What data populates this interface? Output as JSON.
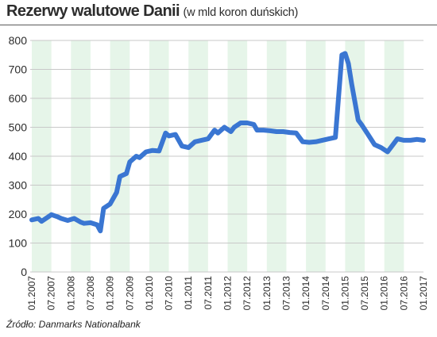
{
  "header": {
    "title": "Rezerwy walutowe Danii",
    "subtitle": "(w mld koron duńskich)"
  },
  "source": "Źródło: Danmarks Nationalbank",
  "colors": {
    "line": "#3a76d2",
    "stripe": "#e6f5e9",
    "grid": "#c8c8c8",
    "text": "#2c2c2c"
  },
  "chart_data": {
    "type": "line",
    "title": "Rezerwy walutowe Danii (w mld koron duńskich)",
    "xlabel": "",
    "ylabel": "",
    "ylim": [
      0,
      800
    ],
    "y_ticks": [
      0,
      100,
      200,
      300,
      400,
      500,
      600,
      700,
      800
    ],
    "x_tick_labels": [
      "01.2007",
      "07.2007",
      "01.2008",
      "07.2008",
      "01.2009",
      "07.2009",
      "01.2010",
      "07.2010",
      "01.2011",
      "07.2011",
      "01.2012",
      "07.2012",
      "01.2013",
      "07.2013",
      "01.2014",
      "07.2014",
      "01.2015",
      "07.2015",
      "01.2016",
      "07.2016",
      "01.2017"
    ],
    "grid": true,
    "series": [
      {
        "x": [
          "2007-01",
          "2007-03",
          "2007-04",
          "2007-06",
          "2007-07",
          "2007-09",
          "2007-10",
          "2007-12",
          "2008-02",
          "2008-04",
          "2008-05",
          "2008-07",
          "2008-09",
          "2008-10",
          "2008-11",
          "2009-01",
          "2009-03",
          "2009-04",
          "2009-06",
          "2009-07",
          "2009-09",
          "2009-10",
          "2009-12",
          "2010-02",
          "2010-04",
          "2010-06",
          "2010-07",
          "2010-09",
          "2010-11",
          "2011-01",
          "2011-03",
          "2011-05",
          "2011-07",
          "2011-09",
          "2011-10",
          "2011-12",
          "2012-02",
          "2012-03",
          "2012-05",
          "2012-07",
          "2012-09",
          "2012-10",
          "2012-12",
          "2013-02",
          "2013-04",
          "2013-06",
          "2013-08",
          "2013-10",
          "2013-12",
          "2014-02",
          "2014-04",
          "2014-06",
          "2014-08",
          "2014-10",
          "2014-12",
          "2015-01",
          "2015-02",
          "2015-03",
          "2015-05",
          "2015-06",
          "2015-08",
          "2015-10",
          "2015-12",
          "2016-02",
          "2016-04",
          "2016-05",
          "2016-07",
          "2016-09",
          "2016-11",
          "2017-01"
        ],
        "values": [
          180,
          185,
          175,
          190,
          198,
          190,
          185,
          178,
          185,
          172,
          168,
          170,
          163,
          142,
          220,
          235,
          275,
          330,
          340,
          380,
          400,
          395,
          415,
          420,
          418,
          480,
          470,
          475,
          435,
          430,
          450,
          455,
          460,
          490,
          480,
          500,
          485,
          500,
          515,
          515,
          510,
          490,
          490,
          488,
          485,
          485,
          482,
          480,
          450,
          448,
          450,
          455,
          460,
          465,
          750,
          755,
          720,
          650,
          525,
          510,
          475,
          440,
          430,
          415,
          445,
          460,
          455,
          455,
          458,
          455
        ]
      }
    ]
  }
}
